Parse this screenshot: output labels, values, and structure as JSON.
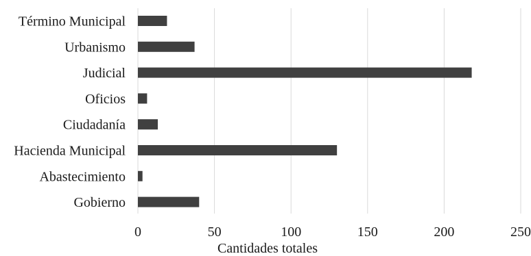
{
  "chart_data": {
    "type": "bar",
    "orientation": "horizontal",
    "categories": [
      "Término Municipal",
      "Urbanismo",
      "Judicial",
      "Oficios",
      "Ciudadanía",
      "Hacienda Municipal",
      "Abastecimiento",
      "Gobierno"
    ],
    "values": [
      19,
      37,
      218,
      6,
      13,
      130,
      3,
      40
    ],
    "xlabel": "Cantidades totales",
    "ylabel": "",
    "xlim": [
      0,
      250
    ],
    "xticks": [
      0,
      50,
      100,
      150,
      200,
      250
    ],
    "grid": true,
    "bar_color": "#404040"
  }
}
